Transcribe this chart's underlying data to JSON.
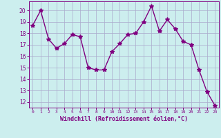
{
  "x": [
    0,
    1,
    2,
    3,
    4,
    5,
    6,
    7,
    8,
    9,
    10,
    11,
    12,
    13,
    14,
    15,
    16,
    17,
    18,
    19,
    20,
    21,
    22,
    23
  ],
  "y": [
    18.7,
    20.0,
    17.5,
    16.7,
    17.1,
    17.9,
    17.7,
    15.0,
    14.8,
    14.8,
    16.4,
    17.1,
    17.9,
    18.0,
    19.0,
    20.4,
    18.2,
    19.2,
    18.4,
    17.3,
    17.0,
    14.8,
    12.9,
    11.7
  ],
  "line_color": "#800080",
  "marker": "*",
  "marker_size": 4,
  "bg_color": "#cceeee",
  "grid_color": "#aaaacc",
  "xlabel": "Windchill (Refroidissement éolien,°C)",
  "xlabel_color": "#800080",
  "tick_color": "#800080",
  "ylim": [
    11.5,
    20.8
  ],
  "xlim": [
    -0.5,
    23.5
  ],
  "yticks": [
    12,
    13,
    14,
    15,
    16,
    17,
    18,
    19,
    20
  ],
  "xticks": [
    0,
    1,
    2,
    3,
    4,
    5,
    6,
    7,
    8,
    9,
    10,
    11,
    12,
    13,
    14,
    15,
    16,
    17,
    18,
    19,
    20,
    21,
    22,
    23
  ]
}
